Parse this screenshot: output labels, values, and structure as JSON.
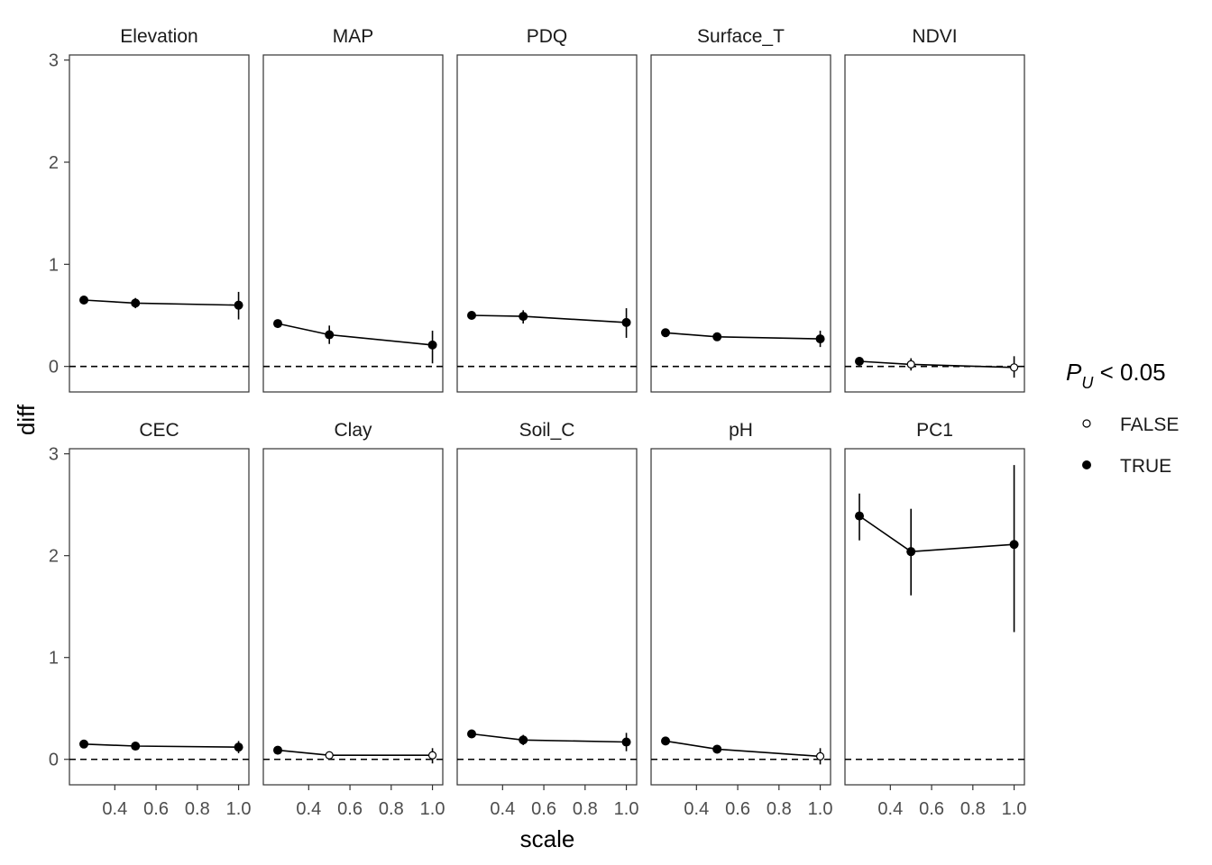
{
  "chart_data": {
    "type": "scatter",
    "xlabel": "scale",
    "ylabel": "diff",
    "xlim": [
      0.18,
      1.05
    ],
    "ylim": [
      -0.25,
      3.05
    ],
    "x_ticks": [
      0.4,
      0.6,
      0.8,
      1.0
    ],
    "x_tick_labels": [
      "0.4",
      "0.6",
      "0.8",
      "1.0"
    ],
    "y_ticks": [
      0,
      1,
      2,
      3
    ],
    "y_tick_labels": [
      "0",
      "1",
      "2",
      "3"
    ],
    "reference_line": {
      "y": 0,
      "style": "dashed"
    },
    "grid": false,
    "legend": {
      "title_main": "P",
      "title_sub": "U",
      "title_rest": " < 0.05",
      "position": "right",
      "entries": [
        {
          "label": "FALSE",
          "marker": "open-circle"
        },
        {
          "label": "TRUE",
          "marker": "filled-circle"
        }
      ]
    },
    "panels": [
      {
        "title": "Elevation",
        "points": [
          {
            "x": 0.25,
            "y": 0.65,
            "lo": 0.63,
            "hi": 0.67,
            "sig": true
          },
          {
            "x": 0.5,
            "y": 0.62,
            "lo": 0.57,
            "hi": 0.67,
            "sig": true
          },
          {
            "x": 1.0,
            "y": 0.6,
            "lo": 0.46,
            "hi": 0.73,
            "sig": true
          }
        ]
      },
      {
        "title": "MAP",
        "points": [
          {
            "x": 0.25,
            "y": 0.42,
            "lo": 0.39,
            "hi": 0.45,
            "sig": true
          },
          {
            "x": 0.5,
            "y": 0.31,
            "lo": 0.22,
            "hi": 0.4,
            "sig": true
          },
          {
            "x": 1.0,
            "y": 0.21,
            "lo": 0.03,
            "hi": 0.35,
            "sig": true
          }
        ]
      },
      {
        "title": "PDQ",
        "points": [
          {
            "x": 0.25,
            "y": 0.5,
            "lo": 0.48,
            "hi": 0.52,
            "sig": true
          },
          {
            "x": 0.5,
            "y": 0.49,
            "lo": 0.42,
            "hi": 0.55,
            "sig": true
          },
          {
            "x": 1.0,
            "y": 0.43,
            "lo": 0.28,
            "hi": 0.57,
            "sig": true
          }
        ]
      },
      {
        "title": "Surface_T",
        "points": [
          {
            "x": 0.25,
            "y": 0.33,
            "lo": 0.31,
            "hi": 0.35,
            "sig": true
          },
          {
            "x": 0.5,
            "y": 0.29,
            "lo": 0.26,
            "hi": 0.32,
            "sig": true
          },
          {
            "x": 1.0,
            "y": 0.27,
            "lo": 0.19,
            "hi": 0.35,
            "sig": true
          }
        ]
      },
      {
        "title": "NDVI",
        "points": [
          {
            "x": 0.25,
            "y": 0.05,
            "lo": 0.03,
            "hi": 0.07,
            "sig": true
          },
          {
            "x": 0.5,
            "y": 0.02,
            "lo": -0.04,
            "hi": 0.08,
            "sig": false
          },
          {
            "x": 1.0,
            "y": -0.01,
            "lo": -0.11,
            "hi": 0.1,
            "sig": false
          }
        ]
      },
      {
        "title": "CEC",
        "points": [
          {
            "x": 0.25,
            "y": 0.15,
            "lo": 0.13,
            "hi": 0.17,
            "sig": true
          },
          {
            "x": 0.5,
            "y": 0.13,
            "lo": 0.11,
            "hi": 0.15,
            "sig": true
          },
          {
            "x": 1.0,
            "y": 0.12,
            "lo": 0.06,
            "hi": 0.18,
            "sig": true
          }
        ]
      },
      {
        "title": "Clay",
        "points": [
          {
            "x": 0.25,
            "y": 0.09,
            "lo": 0.07,
            "hi": 0.11,
            "sig": true
          },
          {
            "x": 0.5,
            "y": 0.04,
            "lo": 0.0,
            "hi": 0.07,
            "sig": false
          },
          {
            "x": 1.0,
            "y": 0.04,
            "lo": -0.04,
            "hi": 0.11,
            "sig": false
          }
        ]
      },
      {
        "title": "Soil_C",
        "points": [
          {
            "x": 0.25,
            "y": 0.25,
            "lo": 0.23,
            "hi": 0.27,
            "sig": true
          },
          {
            "x": 0.5,
            "y": 0.19,
            "lo": 0.14,
            "hi": 0.24,
            "sig": true
          },
          {
            "x": 1.0,
            "y": 0.17,
            "lo": 0.08,
            "hi": 0.26,
            "sig": true
          }
        ]
      },
      {
        "title": "pH",
        "points": [
          {
            "x": 0.25,
            "y": 0.18,
            "lo": 0.16,
            "hi": 0.2,
            "sig": true
          },
          {
            "x": 0.5,
            "y": 0.1,
            "lo": 0.06,
            "hi": 0.14,
            "sig": true
          },
          {
            "x": 1.0,
            "y": 0.03,
            "lo": -0.05,
            "hi": 0.11,
            "sig": false
          }
        ]
      },
      {
        "title": "PC1",
        "points": [
          {
            "x": 0.25,
            "y": 2.39,
            "lo": 2.15,
            "hi": 2.61,
            "sig": true
          },
          {
            "x": 0.5,
            "y": 2.04,
            "lo": 1.61,
            "hi": 2.46,
            "sig": true
          },
          {
            "x": 1.0,
            "y": 2.11,
            "lo": 1.25,
            "hi": 2.89,
            "sig": true
          }
        ]
      }
    ]
  }
}
